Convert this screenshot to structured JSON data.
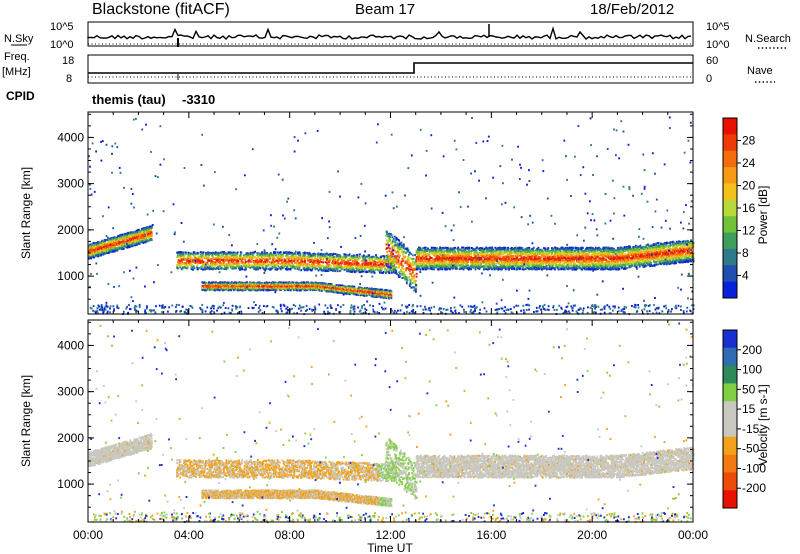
{
  "header": {
    "station": "Blackstone (fitACF)",
    "beam": "Beam 17",
    "date": "18/Feb/2012",
    "program": "themis (tau)",
    "cpid_value": "-3310"
  },
  "status_panels": {
    "nsky_label": "N.Sky",
    "nsearch_label": "N.Search",
    "noise_ticks": [
      "10^5",
      "10^0"
    ],
    "freq_label": "Freq.",
    "freq_unit": "[MHz]",
    "freq_ticks": [
      "18",
      "8"
    ],
    "nave_label": "Nave",
    "nave_ticks": [
      "60",
      "0"
    ],
    "cpid_label": "CPID"
  },
  "chart_data": [
    {
      "type": "heatmap",
      "name": "power",
      "ylabel": "Slant Range [km]",
      "xlabel": "Time UT",
      "x_ticks": [
        "00:00",
        "04:00",
        "08:00",
        "12:00",
        "16:00",
        "20:00",
        "00:00"
      ],
      "y_ticks": [
        1000,
        2000,
        3000,
        4000
      ],
      "ylim": [
        180,
        4550
      ],
      "xlim_hours": [
        0,
        24
      ],
      "colorbar": {
        "label": "Power [dB]",
        "ticks": [
          "4",
          "8",
          "12",
          "16",
          "20",
          "24",
          "28"
        ],
        "colors": [
          "#0a1fd9",
          "#1f4fb0",
          "#2f7a8a",
          "#3e9f5c",
          "#6fc23a",
          "#b9d83a",
          "#f2c21a",
          "#f59a12",
          "#f26d0a",
          "#ee3a06",
          "#e81000"
        ]
      }
    },
    {
      "type": "heatmap",
      "name": "velocity",
      "ylabel": "Slant Range [km]",
      "xlabel": "Time UT",
      "x_ticks": [
        "00:00",
        "04:00",
        "08:00",
        "12:00",
        "16:00",
        "20:00",
        "00:00"
      ],
      "y_ticks": [
        1000,
        2000,
        3000,
        4000
      ],
      "ylim": [
        180,
        4550
      ],
      "xlim_hours": [
        0,
        24
      ],
      "colorbar": {
        "label": "Velocity [m s-1]",
        "ticks": [
          "200",
          "100",
          "50",
          "15",
          "-15",
          "-50",
          "-100",
          "-200"
        ],
        "colors": [
          "#1a2fd0",
          "#2f6cb0",
          "#2e8a5a",
          "#7fd142",
          "#c8c8c0",
          "#c8c8c0",
          "#f2a21a",
          "#f27a10",
          "#ee4a08",
          "#e81000"
        ]
      }
    }
  ],
  "x_axis_title": "Time UT"
}
